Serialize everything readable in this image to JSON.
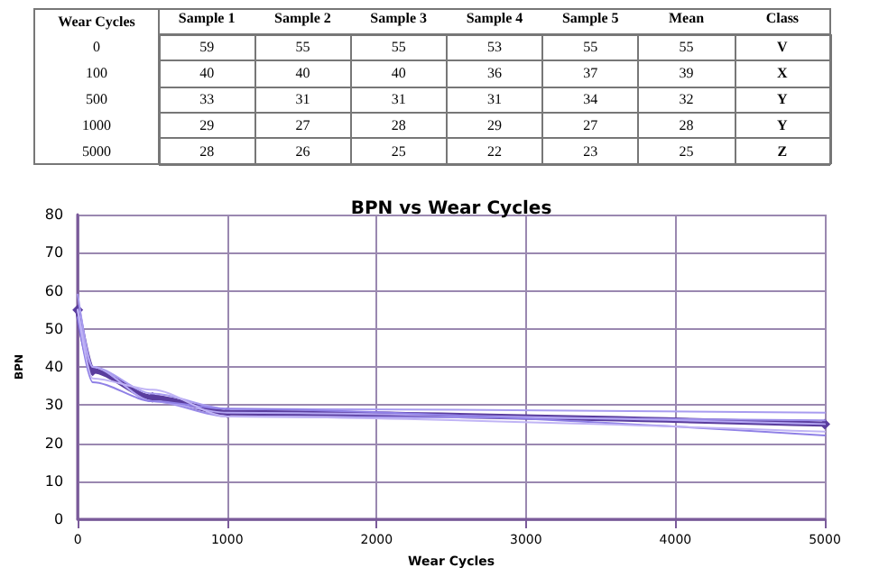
{
  "chart_data": [
    {
      "type": "heatmap",
      "ylabel": "Wear Cycles",
      "categories": [
        "Sample 1",
        "Sample 2",
        "Sample 3",
        "Sample 4",
        "Sample 5",
        "Mean",
        "Class"
      ],
      "y_categories": [
        "0",
        "100",
        "500",
        "1000",
        "5000"
      ],
      "cells": [
        [
          null,
          null,
          null,
          null,
          null,
          null,
          null
        ],
        [
          null,
          null,
          null,
          null,
          null,
          null,
          null
        ],
        [
          null,
          null,
          null,
          null,
          null,
          null,
          null
        ],
        [
          null,
          null,
          null,
          null,
          null,
          null,
          null
        ],
        [
          null,
          null,
          null,
          null,
          null,
          null,
          null
        ]
      ],
      "cell_labels": [
        [
          "59",
          "55",
          "55",
          "53",
          "55",
          "55",
          "V"
        ],
        [
          "40",
          "40",
          "40",
          "36",
          "37",
          "39",
          "X"
        ],
        [
          "33",
          "31",
          "31",
          "31",
          "34",
          "32",
          "Y"
        ],
        [
          "29",
          "27",
          "28",
          "29",
          "27",
          "28",
          "Y"
        ],
        [
          "28",
          "26",
          "25",
          "22",
          "23",
          "25",
          "Z"
        ]
      ]
    },
    {
      "type": "line",
      "title": "BPN vs Wear Cycles",
      "xlabel": "Wear Cycles",
      "ylabel": "BPN",
      "x": [
        0,
        100,
        500,
        1000,
        5000
      ],
      "series": [
        {
          "color": "#a89cf0",
          "values": [
            59,
            40,
            33,
            29,
            28
          ]
        },
        {
          "color": "#9a8ce8",
          "values": [
            55,
            40,
            31,
            27,
            26
          ]
        },
        {
          "color": "#b3a6f2",
          "values": [
            55,
            40,
            31,
            28,
            25
          ]
        },
        {
          "color": "#8f80e6",
          "values": [
            53,
            36,
            31,
            29,
            22
          ]
        },
        {
          "color": "#c0b4f5",
          "values": [
            55,
            37,
            34,
            27,
            23
          ]
        },
        {
          "color": "#5a3d9e",
          "values": [
            55,
            39,
            32,
            28,
            25
          ],
          "marker": "diamond"
        }
      ],
      "xlim": [
        0,
        5000
      ],
      "xticks": [
        0,
        1000,
        2000,
        3000,
        4000,
        5000
      ],
      "ylim": [
        0,
        80
      ],
      "yticks": [
        0,
        10,
        20,
        30,
        40,
        50,
        60,
        70,
        80
      ],
      "grid": true
    }
  ]
}
